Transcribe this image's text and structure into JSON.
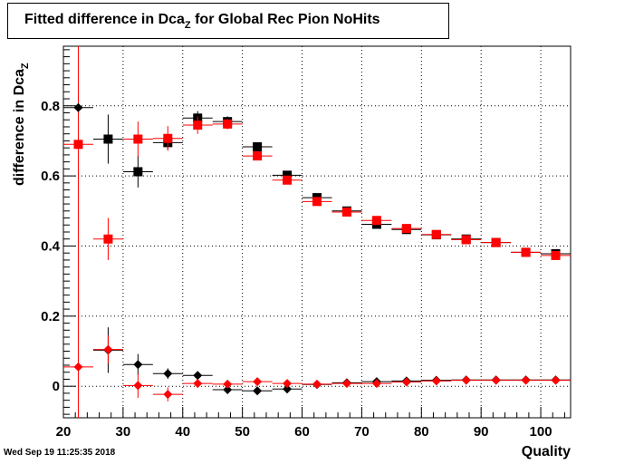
{
  "title": {
    "prefix": "Fitted difference in Dca",
    "sub": "Z",
    "suffix": " for Global Rec Pion NoHits"
  },
  "timestamp": "Wed Sep 19 11:25:35 2018",
  "colors": {
    "black": "#000000",
    "red": "#ff0000",
    "grid": "#000000"
  },
  "chart_data": {
    "type": "scatter",
    "xlabel": "Quality",
    "ylabel": {
      "text": "difference in Dca",
      "sub": "Z"
    },
    "xlim": [
      20,
      105
    ],
    "ylim": [
      -0.09,
      0.97
    ],
    "grid": true,
    "x_ticks": [
      20,
      30,
      40,
      50,
      60,
      70,
      80,
      90,
      100
    ],
    "y_ticks": [
      0,
      0.2,
      0.4,
      0.6,
      0.8
    ],
    "y_tick_labels": [
      "0",
      "0.2",
      "0.4",
      "0.6",
      "0.8"
    ],
    "series": [
      {
        "color": "black",
        "marker": "square",
        "points": [
          {
            "x": 27.5,
            "y": 0.705,
            "err": 0.07
          },
          {
            "x": 32.5,
            "y": 0.612,
            "err": 0.045
          },
          {
            "x": 37.5,
            "y": 0.695,
            "err": 0.02
          },
          {
            "x": 42.5,
            "y": 0.765,
            "err": 0.02
          },
          {
            "x": 47.5,
            "y": 0.755,
            "err": 0.015
          },
          {
            "x": 52.5,
            "y": 0.683,
            "err": 0.01
          },
          {
            "x": 57.5,
            "y": 0.602,
            "err": 0.008
          },
          {
            "x": 62.5,
            "y": 0.538,
            "err": 0.006
          },
          {
            "x": 67.5,
            "y": 0.5,
            "err": 0.005
          },
          {
            "x": 72.5,
            "y": 0.462,
            "err": 0.005
          },
          {
            "x": 77.5,
            "y": 0.447,
            "err": 0.004
          },
          {
            "x": 82.5,
            "y": 0.432,
            "err": 0.004
          },
          {
            "x": 87.5,
            "y": 0.42,
            "err": 0.004
          },
          {
            "x": 92.5,
            "y": 0.41,
            "err": 0.004
          },
          {
            "x": 97.5,
            "y": 0.382,
            "err": 0.004
          },
          {
            "x": 102.5,
            "y": 0.378,
            "err": 0.004
          }
        ]
      },
      {
        "color": "red",
        "marker": "square",
        "points": [
          {
            "x": 22.5,
            "y": 0.69,
            "err": 1.0
          },
          {
            "x": 27.5,
            "y": 0.42,
            "err": 0.06
          },
          {
            "x": 32.5,
            "y": 0.705,
            "err": 0.05
          },
          {
            "x": 37.5,
            "y": 0.707,
            "err": 0.035
          },
          {
            "x": 42.5,
            "y": 0.745,
            "err": 0.025
          },
          {
            "x": 47.5,
            "y": 0.748,
            "err": 0.015
          },
          {
            "x": 52.5,
            "y": 0.657,
            "err": 0.01
          },
          {
            "x": 57.5,
            "y": 0.588,
            "err": 0.008
          },
          {
            "x": 62.5,
            "y": 0.527,
            "err": 0.006
          },
          {
            "x": 67.5,
            "y": 0.497,
            "err": 0.005
          },
          {
            "x": 72.5,
            "y": 0.473,
            "err": 0.005
          },
          {
            "x": 77.5,
            "y": 0.45,
            "err": 0.004
          },
          {
            "x": 82.5,
            "y": 0.433,
            "err": 0.004
          },
          {
            "x": 87.5,
            "y": 0.418,
            "err": 0.004
          },
          {
            "x": 92.5,
            "y": 0.41,
            "err": 0.004
          },
          {
            "x": 97.5,
            "y": 0.382,
            "err": 0.004
          },
          {
            "x": 102.5,
            "y": 0.373,
            "err": 0.004
          }
        ]
      },
      {
        "color": "black",
        "marker": "diamond",
        "points": [
          {
            "x": 22.5,
            "y": 0.795,
            "err": 0.0
          },
          {
            "x": 27.5,
            "y": 0.103,
            "err": 0.065
          },
          {
            "x": 32.5,
            "y": 0.062,
            "err": 0.03
          },
          {
            "x": 37.5,
            "y": 0.036,
            "err": 0.015
          },
          {
            "x": 42.5,
            "y": 0.031,
            "err": 0.01
          },
          {
            "x": 47.5,
            "y": -0.01,
            "err": 0.008
          },
          {
            "x": 52.5,
            "y": -0.013,
            "err": 0.006
          },
          {
            "x": 57.5,
            "y": -0.008,
            "err": 0.005
          },
          {
            "x": 62.5,
            "y": 0.005,
            "err": 0.004
          },
          {
            "x": 67.5,
            "y": 0.01,
            "err": 0.004
          },
          {
            "x": 72.5,
            "y": 0.013,
            "err": 0.004
          },
          {
            "x": 77.5,
            "y": 0.015,
            "err": 0.004
          },
          {
            "x": 82.5,
            "y": 0.017,
            "err": 0.004
          },
          {
            "x": 87.5,
            "y": 0.018,
            "err": 0.004
          },
          {
            "x": 92.5,
            "y": 0.018,
            "err": 0.004
          },
          {
            "x": 97.5,
            "y": 0.018,
            "err": 0.004
          },
          {
            "x": 102.5,
            "y": 0.018,
            "err": 0.004
          }
        ]
      },
      {
        "color": "red",
        "marker": "diamond",
        "points": [
          {
            "x": 22.5,
            "y": 0.055,
            "err": 0.0
          },
          {
            "x": 27.5,
            "y": 0.105,
            "err": 0.04
          },
          {
            "x": 32.5,
            "y": 0.002,
            "err": 0.035
          },
          {
            "x": 37.5,
            "y": -0.023,
            "err": 0.02
          },
          {
            "x": 42.5,
            "y": 0.008,
            "err": 0.012
          },
          {
            "x": 47.5,
            "y": 0.006,
            "err": 0.008
          },
          {
            "x": 52.5,
            "y": 0.013,
            "err": 0.006
          },
          {
            "x": 57.5,
            "y": 0.008,
            "err": 0.005
          },
          {
            "x": 62.5,
            "y": 0.006,
            "err": 0.004
          },
          {
            "x": 67.5,
            "y": 0.008,
            "err": 0.004
          },
          {
            "x": 72.5,
            "y": 0.008,
            "err": 0.004
          },
          {
            "x": 77.5,
            "y": 0.012,
            "err": 0.004
          },
          {
            "x": 82.5,
            "y": 0.015,
            "err": 0.004
          },
          {
            "x": 87.5,
            "y": 0.017,
            "err": 0.004
          },
          {
            "x": 92.5,
            "y": 0.017,
            "err": 0.004
          },
          {
            "x": 97.5,
            "y": 0.017,
            "err": 0.004
          },
          {
            "x": 102.5,
            "y": 0.017,
            "err": 0.004
          }
        ]
      }
    ]
  }
}
